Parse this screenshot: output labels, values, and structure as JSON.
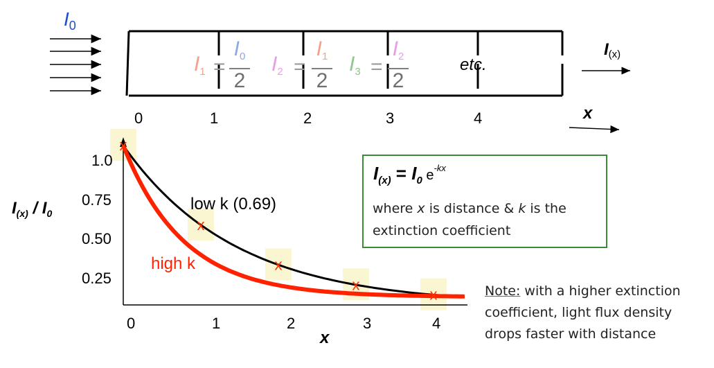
{
  "top": {
    "incident_label": {
      "main": "I",
      "sub": "0"
    },
    "output_label": {
      "main": "I",
      "sub": "(x)"
    },
    "equations": [
      {
        "lhs_main": "I",
        "lhs_sub": "1",
        "eq": "=",
        "num_main": "I",
        "num_sub": "0",
        "den": "2",
        "color": "#f4a08c",
        "num_color": "#8ea8e0"
      },
      {
        "lhs_main": "I",
        "lhs_sub": "2",
        "eq": "=",
        "num_main": "I",
        "num_sub": "1",
        "den": "2",
        "color": "#e79ee6",
        "num_color": "#f4a08c"
      },
      {
        "lhs_main": "I",
        "lhs_sub": "3",
        "eq": "=",
        "num_main": "I",
        "num_sub": "2",
        "den": "2",
        "color": "#8fc68a",
        "num_color": "#e79ee6"
      }
    ],
    "etc": "etc.",
    "positions": [
      "0",
      "1",
      "2",
      "3",
      "4"
    ],
    "x_label": "x"
  },
  "graph": {
    "y_axis_label": {
      "main": "I",
      "sub": "(x)",
      "rest": " / I",
      "sub2": "0"
    },
    "y_ticks": [
      "1.0",
      "0.75",
      "0.50",
      "0.25"
    ],
    "x_ticks": [
      "0",
      "1",
      "2",
      "3",
      "4"
    ],
    "x_axis_label": "x",
    "low_k_label": "low k (0.69)",
    "high_k_label": "high k",
    "marker": "x",
    "colors": {
      "low_k": "#000000",
      "high_k": "#ff2200",
      "marker": "#ff3300",
      "highlight": "#fbf6d2",
      "box_border": "#3c8a37"
    }
  },
  "chart_data": {
    "type": "line",
    "series": [
      {
        "name": "low k (0.69)",
        "k": 0.69,
        "x": [
          0,
          1,
          2,
          3,
          4.4
        ],
        "values": [
          1.0,
          0.5,
          0.25,
          0.125,
          0.05
        ]
      },
      {
        "name": "high k",
        "x": [
          0,
          1,
          2,
          3,
          4.4
        ],
        "values": [
          1.0,
          0.33,
          0.15,
          0.07,
          0.05
        ]
      }
    ],
    "markers": {
      "x": [
        0,
        1,
        2,
        3,
        4
      ],
      "values": [
        1.0,
        0.5,
        0.25,
        0.125,
        0.0625
      ]
    },
    "xlabel": "x",
    "ylabel": "I(x) / I0",
    "xlim": [
      0,
      4.4
    ],
    "ylim": [
      0,
      1.0
    ]
  },
  "formula": {
    "lhs_main": "I",
    "lhs_sub": "(x)",
    "eq": " = ",
    "rhs_main": "I",
    "rhs_sub": "0",
    "base": " e",
    "exp": "-kx",
    "desc_line1_a": "where ",
    "desc_line1_x": "x",
    "desc_line1_b": " is distance & ",
    "desc_line1_k": "k",
    "desc_line1_c": " is the",
    "desc_line2": "extinction coefficient"
  },
  "note": {
    "title": "Note:",
    "line1": " with a higher extinction",
    "line2": "coefficient, light flux density",
    "line3": "drops faster with distance"
  }
}
